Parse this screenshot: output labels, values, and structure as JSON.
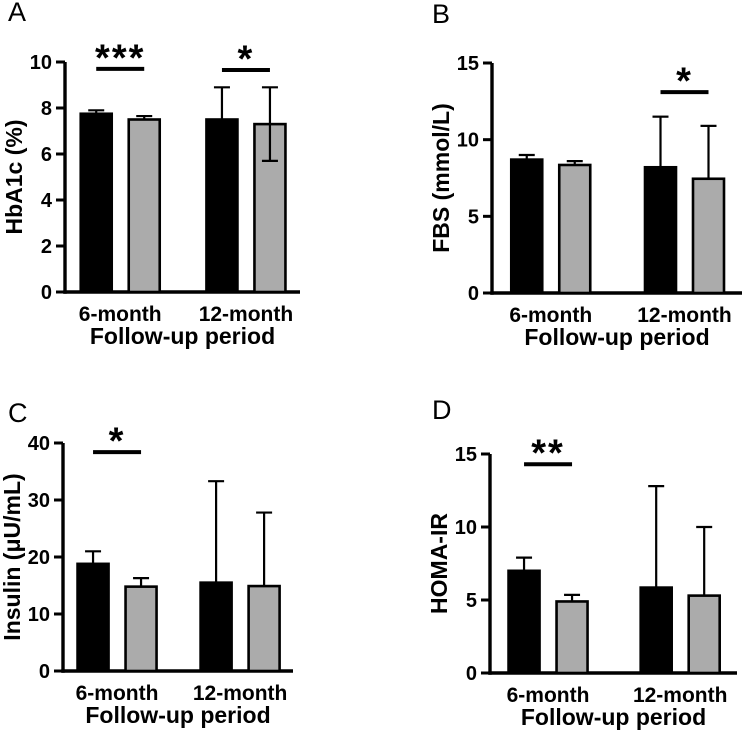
{
  "colors": {
    "bar_black": "#000000",
    "bar_gray": "#ABABAB",
    "axis": "#000000",
    "background": "#FFFFFF"
  },
  "chart_data": [
    {
      "type": "bar",
      "panel": "A",
      "ylabel": "HbA1c (%)",
      "xlabel": "Follow-up period",
      "ylim": [
        0,
        10
      ],
      "yticks": [
        0,
        2,
        4,
        6,
        8,
        10
      ],
      "grid": false,
      "legend": "none",
      "categories": [
        "6-month",
        "12-month"
      ],
      "series": [
        {
          "name": "black",
          "color": "#000000",
          "values": [
            7.75,
            7.5
          ],
          "err_top": [
            7.9,
            8.9
          ],
          "err_bottom": [
            null,
            null
          ]
        },
        {
          "name": "gray",
          "color": "#ABABAB",
          "values": [
            7.5,
            7.3
          ],
          "err_top": [
            7.65,
            8.9
          ],
          "err_bottom": [
            null,
            5.7
          ]
        }
      ],
      "significance": [
        {
          "group": 0,
          "label": "***",
          "y": 9.7
        },
        {
          "group": 1,
          "label": "*",
          "y": 9.65
        }
      ]
    },
    {
      "type": "bar",
      "panel": "B",
      "ylabel": "FBS (mmol/L)",
      "xlabel": "Follow-up period",
      "ylim": [
        0,
        15
      ],
      "yticks": [
        0,
        5,
        10,
        15
      ],
      "grid": false,
      "legend": "none",
      "categories": [
        "6-month",
        "12-month"
      ],
      "series": [
        {
          "name": "black",
          "color": "#000000",
          "values": [
            8.7,
            8.2
          ],
          "err_top": [
            9.0,
            11.5
          ],
          "err_bottom": [
            null,
            null
          ]
        },
        {
          "name": "gray",
          "color": "#ABABAB",
          "values": [
            8.35,
            7.45
          ],
          "err_top": [
            8.6,
            10.9
          ],
          "err_bottom": [
            null,
            null
          ]
        }
      ],
      "significance": [
        {
          "group": 1,
          "label": "*",
          "y": 13.1
        }
      ]
    },
    {
      "type": "bar",
      "panel": "C",
      "ylabel": "Insulin (μU/mL)",
      "xlabel": "Follow-up period",
      "ylim": [
        0,
        40
      ],
      "yticks": [
        0,
        10,
        20,
        30,
        40
      ],
      "grid": false,
      "legend": "none",
      "categories": [
        "6-month",
        "12-month"
      ],
      "series": [
        {
          "name": "black",
          "color": "#000000",
          "values": [
            18.8,
            15.5
          ],
          "err_top": [
            21.0,
            33.3
          ],
          "err_bottom": [
            null,
            null
          ]
        },
        {
          "name": "gray",
          "color": "#ABABAB",
          "values": [
            14.8,
            14.9
          ],
          "err_top": [
            16.3,
            27.8
          ],
          "err_bottom": [
            null,
            null
          ]
        }
      ],
      "significance": [
        {
          "group": 0,
          "label": "*",
          "y": 38.4
        }
      ]
    },
    {
      "type": "bar",
      "panel": "D",
      "ylabel": "HOMA-IR",
      "xlabel": "Follow-up period",
      "ylim": [
        0,
        15
      ],
      "yticks": [
        0,
        5,
        10,
        15
      ],
      "grid": false,
      "legend": "none",
      "categories": [
        "6-month",
        "12-month"
      ],
      "series": [
        {
          "name": "black",
          "color": "#000000",
          "values": [
            7.0,
            5.85
          ],
          "err_top": [
            7.9,
            12.8
          ],
          "err_bottom": [
            null,
            null
          ]
        },
        {
          "name": "gray",
          "color": "#ABABAB",
          "values": [
            4.9,
            5.3
          ],
          "err_top": [
            5.35,
            10.0
          ],
          "err_bottom": [
            null,
            null
          ]
        }
      ],
      "significance": [
        {
          "group": 0,
          "label": "**",
          "y": 14.3
        }
      ]
    }
  ]
}
